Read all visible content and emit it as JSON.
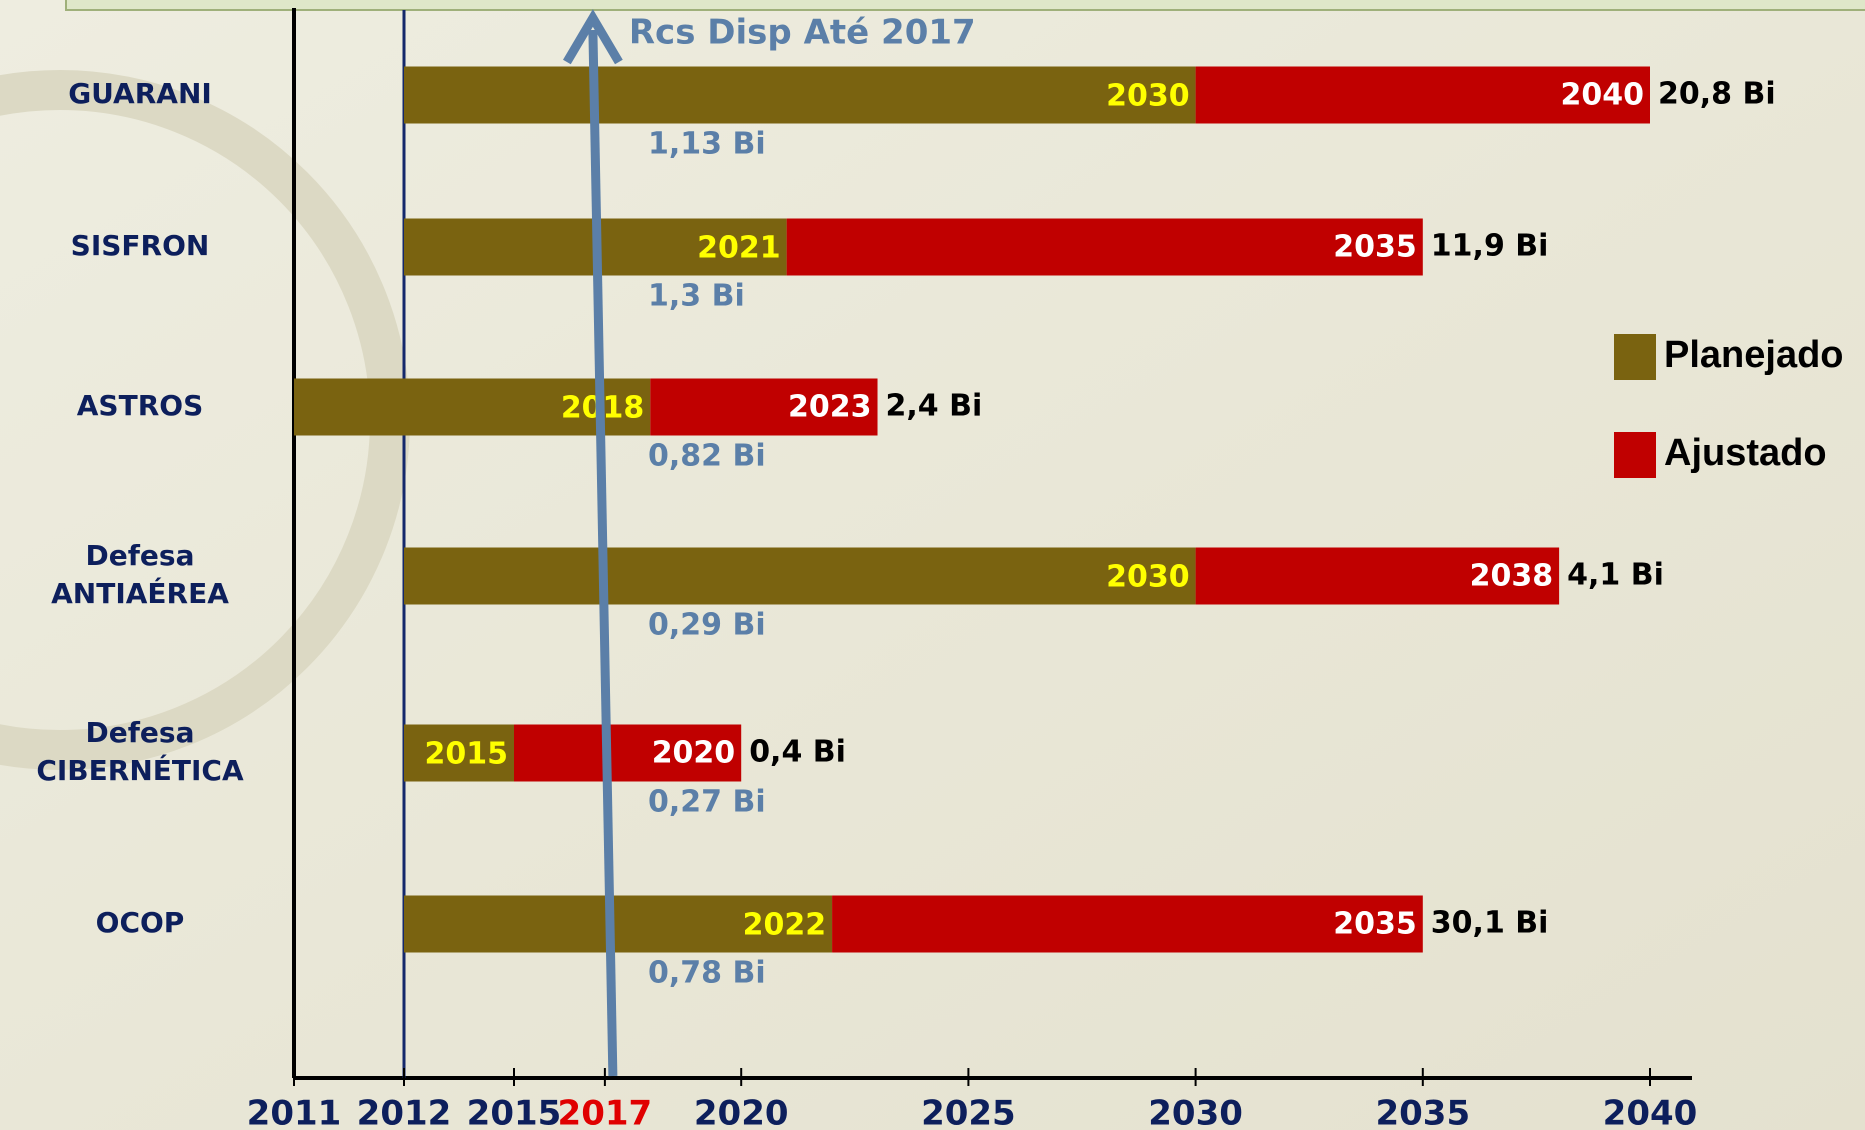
{
  "chart_data": {
    "type": "timeline",
    "annotation": "Rcs Disp Até 2017",
    "categories": [
      [
        "GUARANI"
      ],
      [
        "SISFRON"
      ],
      [
        "ASTROS"
      ],
      [
        "Defesa",
        "ANTIAÉREA"
      ],
      [
        "Defesa",
        "CIBERNÉTICA"
      ],
      [
        "OCOP"
      ]
    ],
    "start": [
      2012,
      2012,
      2011,
      2012,
      2012,
      2012
    ],
    "series": [
      {
        "name": "Planejado",
        "color": "#7a6310",
        "values": [
          2030,
          2021,
          2018,
          2030,
          2015,
          2022
        ]
      },
      {
        "name": "Ajustado",
        "color": "#c00000",
        "values": [
          2040,
          2035,
          2023,
          2038,
          2020,
          2035
        ]
      }
    ],
    "totals": [
      "20,8 Bi",
      "11,9 Bi",
      "2,4 Bi",
      "4,1 Bi",
      "0,4 Bi",
      "30,1 Bi"
    ],
    "available": [
      "1,13 Bi",
      "1,3 Bi",
      "0,82 Bi",
      "0,29 Bi",
      "0,27 Bi",
      "0,78 Bi"
    ],
    "xlim": [
      2011,
      2040
    ],
    "xticks": [
      2011,
      2012,
      2015,
      2017,
      2020,
      2025,
      2030,
      2035,
      2040
    ],
    "broken_axis": true,
    "highlight_tick": 2017,
    "highlight_color": "#e00000",
    "legend": "right"
  }
}
